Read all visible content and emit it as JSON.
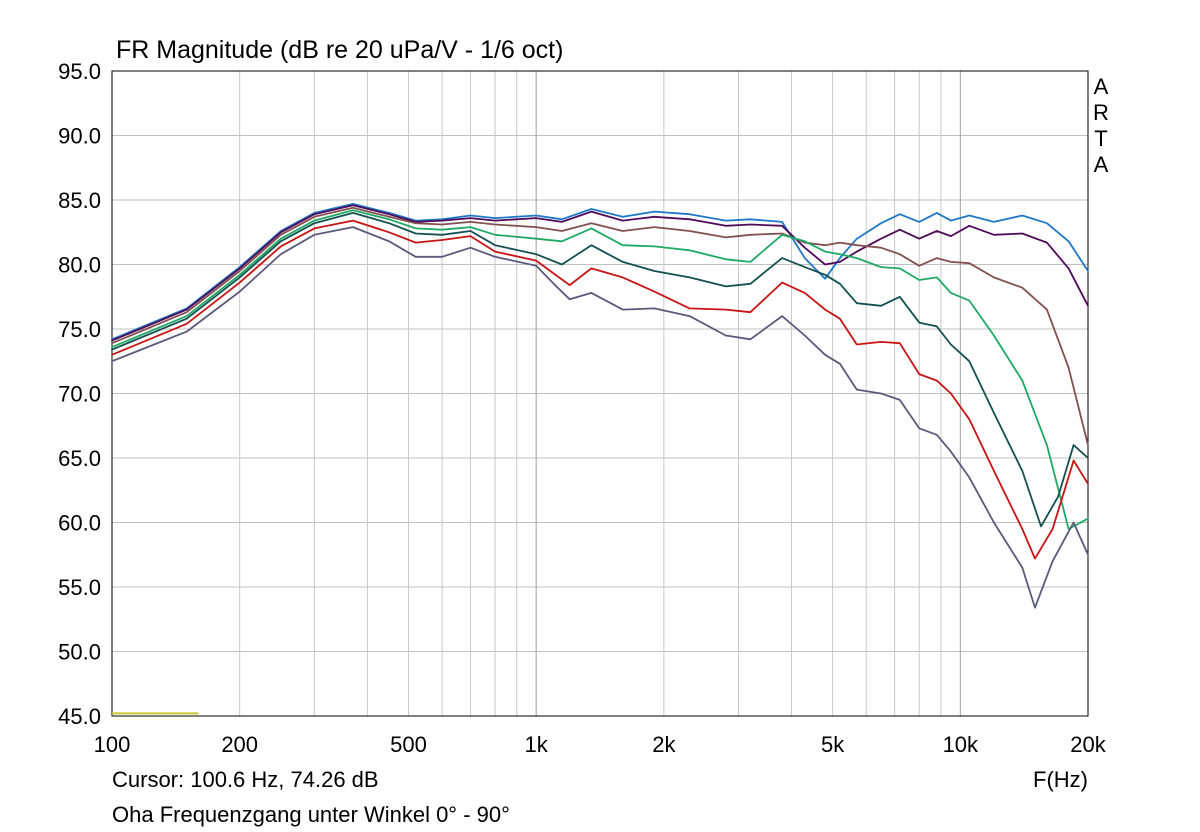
{
  "chart_data": {
    "type": "line",
    "title": "FR Magnitude (dB re 20 uPa/V - 1/6 oct)",
    "watermark": "ARTA",
    "xlabel": "F(Hz)",
    "xscale": "log",
    "xlim": [
      100,
      20000
    ],
    "ylim": [
      45,
      95
    ],
    "grid": true,
    "x_tick_values": [
      100,
      200,
      500,
      1000,
      2000,
      5000,
      10000,
      20000
    ],
    "x_tick_labels": [
      "100",
      "200",
      "500",
      "1k",
      "2k",
      "5k",
      "10k",
      "20k"
    ],
    "y_tick_values": [
      45,
      50,
      55,
      60,
      65,
      70,
      75,
      80,
      85,
      90,
      95
    ],
    "y_tick_labels": [
      "45.0",
      "50.0",
      "55.0",
      "60.0",
      "65.0",
      "70.0",
      "75.0",
      "80.0",
      "85.0",
      "90.0",
      "95.0"
    ],
    "cursor_text": "Cursor: 100.6 Hz, 74.26 dB",
    "caption": "Oha Frequenzgang unter Winkel 0° - 90°",
    "cursor_marker": {
      "x_from": 100,
      "x_to": 160,
      "y": 45.2,
      "color": "#c8c832"
    },
    "series": [
      {
        "color": "#1e78c8",
        "points": [
          [
            100,
            74.2
          ],
          [
            150,
            76.6
          ],
          [
            200,
            79.8
          ],
          [
            250,
            82.6
          ],
          [
            300,
            84.0
          ],
          [
            370,
            84.7
          ],
          [
            450,
            84.0
          ],
          [
            520,
            83.4
          ],
          [
            600,
            83.5
          ],
          [
            700,
            83.8
          ],
          [
            800,
            83.6
          ],
          [
            1000,
            83.8
          ],
          [
            1150,
            83.5
          ],
          [
            1350,
            84.3
          ],
          [
            1600,
            83.7
          ],
          [
            1900,
            84.1
          ],
          [
            2300,
            83.9
          ],
          [
            2800,
            83.4
          ],
          [
            3200,
            83.5
          ],
          [
            3800,
            83.3
          ],
          [
            4300,
            80.5
          ],
          [
            4800,
            78.9
          ],
          [
            5200,
            80.5
          ],
          [
            5700,
            82.0
          ],
          [
            6500,
            83.2
          ],
          [
            7200,
            83.9
          ],
          [
            8000,
            83.3
          ],
          [
            8800,
            84.0
          ],
          [
            9500,
            83.4
          ],
          [
            10500,
            83.8
          ],
          [
            12000,
            83.3
          ],
          [
            14000,
            83.8
          ],
          [
            16000,
            83.2
          ],
          [
            18000,
            81.8
          ],
          [
            20000,
            79.5
          ]
        ]
      },
      {
        "color": "#500a5a",
        "points": [
          [
            100,
            74.1
          ],
          [
            150,
            76.5
          ],
          [
            200,
            79.7
          ],
          [
            250,
            82.5
          ],
          [
            300,
            83.9
          ],
          [
            370,
            84.6
          ],
          [
            450,
            83.9
          ],
          [
            520,
            83.3
          ],
          [
            600,
            83.4
          ],
          [
            700,
            83.6
          ],
          [
            800,
            83.4
          ],
          [
            1000,
            83.6
          ],
          [
            1150,
            83.3
          ],
          [
            1350,
            84.1
          ],
          [
            1600,
            83.4
          ],
          [
            1900,
            83.7
          ],
          [
            2300,
            83.5
          ],
          [
            2800,
            83.0
          ],
          [
            3200,
            83.1
          ],
          [
            3800,
            83.0
          ],
          [
            4300,
            81.3
          ],
          [
            4800,
            80.0
          ],
          [
            5200,
            80.2
          ],
          [
            5700,
            81.0
          ],
          [
            6500,
            82.0
          ],
          [
            7200,
            82.7
          ],
          [
            8000,
            82.0
          ],
          [
            8800,
            82.6
          ],
          [
            9500,
            82.2
          ],
          [
            10500,
            83.0
          ],
          [
            12000,
            82.3
          ],
          [
            14000,
            82.4
          ],
          [
            16000,
            81.7
          ],
          [
            18000,
            79.7
          ],
          [
            20000,
            76.8
          ]
        ]
      },
      {
        "color": "#825050",
        "points": [
          [
            100,
            73.9
          ],
          [
            150,
            76.3
          ],
          [
            200,
            79.5
          ],
          [
            250,
            82.3
          ],
          [
            300,
            83.7
          ],
          [
            370,
            84.4
          ],
          [
            450,
            83.7
          ],
          [
            520,
            83.2
          ],
          [
            600,
            83.1
          ],
          [
            700,
            83.3
          ],
          [
            800,
            83.1
          ],
          [
            1000,
            82.9
          ],
          [
            1150,
            82.6
          ],
          [
            1350,
            83.2
          ],
          [
            1600,
            82.6
          ],
          [
            1900,
            82.9
          ],
          [
            2300,
            82.6
          ],
          [
            2800,
            82.1
          ],
          [
            3200,
            82.3
          ],
          [
            3800,
            82.4
          ],
          [
            4300,
            81.7
          ],
          [
            4800,
            81.5
          ],
          [
            5200,
            81.7
          ],
          [
            5700,
            81.5
          ],
          [
            6500,
            81.3
          ],
          [
            7200,
            80.8
          ],
          [
            8000,
            79.9
          ],
          [
            8800,
            80.5
          ],
          [
            9500,
            80.2
          ],
          [
            10500,
            80.1
          ],
          [
            12000,
            79.0
          ],
          [
            14000,
            78.2
          ],
          [
            16000,
            76.5
          ],
          [
            18000,
            72.0
          ],
          [
            20000,
            66.0
          ]
        ]
      },
      {
        "color": "#1eaa64",
        "points": [
          [
            100,
            73.6
          ],
          [
            150,
            76.0
          ],
          [
            200,
            79.2
          ],
          [
            250,
            82.0
          ],
          [
            300,
            83.4
          ],
          [
            370,
            84.2
          ],
          [
            450,
            83.5
          ],
          [
            520,
            82.8
          ],
          [
            600,
            82.7
          ],
          [
            700,
            82.9
          ],
          [
            800,
            82.3
          ],
          [
            1000,
            82.0
          ],
          [
            1150,
            81.8
          ],
          [
            1350,
            82.8
          ],
          [
            1600,
            81.5
          ],
          [
            1900,
            81.4
          ],
          [
            2300,
            81.1
          ],
          [
            2800,
            80.4
          ],
          [
            3200,
            80.2
          ],
          [
            3800,
            82.3
          ],
          [
            4300,
            81.8
          ],
          [
            4800,
            81.0
          ],
          [
            5200,
            80.8
          ],
          [
            5700,
            80.5
          ],
          [
            6500,
            79.8
          ],
          [
            7200,
            79.7
          ],
          [
            8000,
            78.8
          ],
          [
            8800,
            79.0
          ],
          [
            9500,
            77.8
          ],
          [
            10500,
            77.2
          ],
          [
            12000,
            74.5
          ],
          [
            14000,
            71.0
          ],
          [
            16000,
            66.0
          ],
          [
            18000,
            59.5
          ],
          [
            20000,
            60.3
          ]
        ]
      },
      {
        "color": "#145050",
        "points": [
          [
            100,
            73.4
          ],
          [
            150,
            75.8
          ],
          [
            200,
            79.0
          ],
          [
            250,
            81.8
          ],
          [
            300,
            83.2
          ],
          [
            370,
            84.0
          ],
          [
            450,
            83.2
          ],
          [
            520,
            82.4
          ],
          [
            600,
            82.3
          ],
          [
            700,
            82.6
          ],
          [
            800,
            81.5
          ],
          [
            1000,
            80.8
          ],
          [
            1150,
            80.0
          ],
          [
            1350,
            81.5
          ],
          [
            1600,
            80.2
          ],
          [
            1900,
            79.5
          ],
          [
            2300,
            79.0
          ],
          [
            2800,
            78.3
          ],
          [
            3200,
            78.5
          ],
          [
            3800,
            80.5
          ],
          [
            4300,
            79.8
          ],
          [
            4800,
            79.2
          ],
          [
            5200,
            78.5
          ],
          [
            5700,
            77.0
          ],
          [
            6500,
            76.8
          ],
          [
            7200,
            77.5
          ],
          [
            8000,
            75.5
          ],
          [
            8800,
            75.2
          ],
          [
            9500,
            73.8
          ],
          [
            10500,
            72.5
          ],
          [
            12000,
            68.5
          ],
          [
            14000,
            64.0
          ],
          [
            15500,
            59.7
          ],
          [
            17000,
            62.0
          ],
          [
            18500,
            66.0
          ],
          [
            20000,
            65.0
          ]
        ]
      },
      {
        "color": "#c81414",
        "points": [
          [
            100,
            73.0
          ],
          [
            150,
            75.4
          ],
          [
            200,
            78.6
          ],
          [
            250,
            81.4
          ],
          [
            300,
            82.8
          ],
          [
            370,
            83.4
          ],
          [
            450,
            82.5
          ],
          [
            520,
            81.7
          ],
          [
            600,
            81.9
          ],
          [
            700,
            82.2
          ],
          [
            800,
            81.0
          ],
          [
            1000,
            80.3
          ],
          [
            1100,
            79.3
          ],
          [
            1200,
            78.4
          ],
          [
            1350,
            79.7
          ],
          [
            1600,
            79.0
          ],
          [
            1900,
            77.9
          ],
          [
            2300,
            76.6
          ],
          [
            2800,
            76.5
          ],
          [
            3200,
            76.3
          ],
          [
            3800,
            78.6
          ],
          [
            4300,
            77.8
          ],
          [
            4800,
            76.5
          ],
          [
            5200,
            75.8
          ],
          [
            5700,
            73.8
          ],
          [
            6500,
            74.0
          ],
          [
            7200,
            73.9
          ],
          [
            8000,
            71.5
          ],
          [
            8800,
            71.0
          ],
          [
            9500,
            70.0
          ],
          [
            10500,
            68.0
          ],
          [
            12000,
            64.0
          ],
          [
            14000,
            59.5
          ],
          [
            15000,
            57.2
          ],
          [
            16500,
            59.5
          ],
          [
            18500,
            64.8
          ],
          [
            20000,
            63.0
          ]
        ]
      },
      {
        "color": "#5a5a7a",
        "points": [
          [
            100,
            72.5
          ],
          [
            150,
            74.8
          ],
          [
            200,
            77.9
          ],
          [
            250,
            80.8
          ],
          [
            300,
            82.3
          ],
          [
            370,
            82.9
          ],
          [
            450,
            81.8
          ],
          [
            520,
            80.6
          ],
          [
            600,
            80.6
          ],
          [
            700,
            81.3
          ],
          [
            800,
            80.6
          ],
          [
            1000,
            79.9
          ],
          [
            1100,
            78.5
          ],
          [
            1200,
            77.3
          ],
          [
            1350,
            77.8
          ],
          [
            1600,
            76.5
          ],
          [
            1900,
            76.6
          ],
          [
            2300,
            76.0
          ],
          [
            2800,
            74.5
          ],
          [
            3200,
            74.2
          ],
          [
            3800,
            76.0
          ],
          [
            4300,
            74.5
          ],
          [
            4800,
            73.0
          ],
          [
            5200,
            72.3
          ],
          [
            5700,
            70.3
          ],
          [
            6500,
            70.0
          ],
          [
            7200,
            69.5
          ],
          [
            8000,
            67.3
          ],
          [
            8800,
            66.8
          ],
          [
            9500,
            65.5
          ],
          [
            10500,
            63.5
          ],
          [
            12000,
            60.0
          ],
          [
            14000,
            56.5
          ],
          [
            15000,
            53.4
          ],
          [
            16500,
            57.0
          ],
          [
            18500,
            60.0
          ],
          [
            20000,
            57.5
          ]
        ]
      }
    ]
  }
}
